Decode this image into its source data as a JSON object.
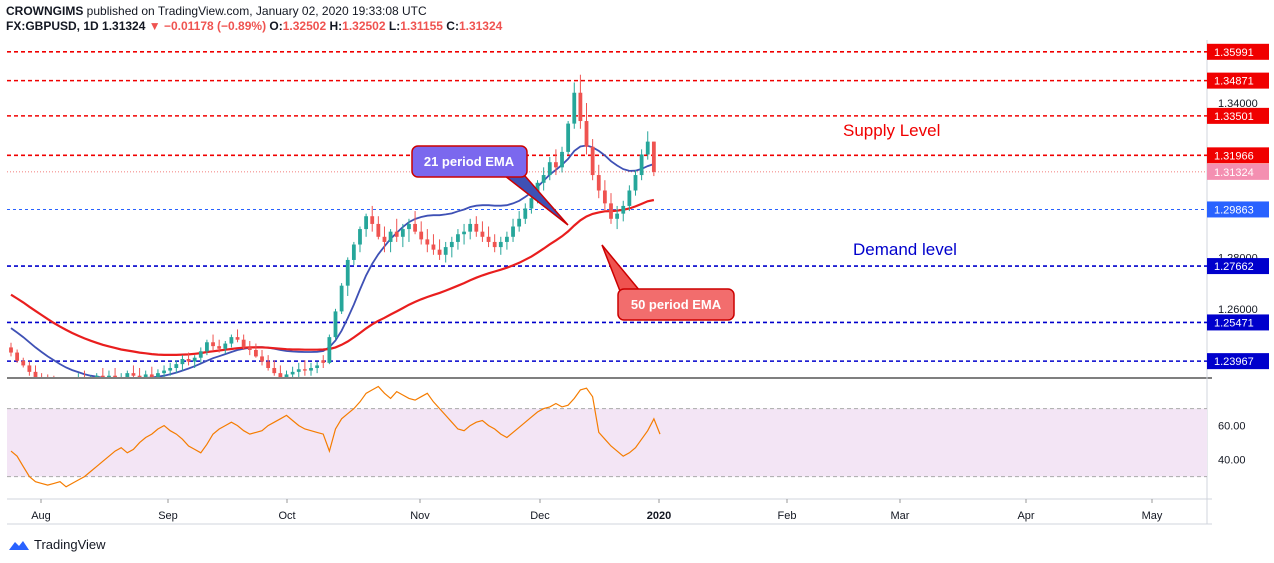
{
  "header": {
    "publisher": "CROWNGIMS",
    "published_text": "published on TradingView.com, January 02, 2020 19:33:08 UTC",
    "symbol": "FX:GBPUSD, 1D",
    "last": "1.31324",
    "change": "▼ −0.01178 (−0.89%)",
    "o_label": "O:",
    "o": "1.32502",
    "h_label": "H:",
    "h": "1.32502",
    "l_label": "L:",
    "l": "1.31155",
    "c_label": "C:",
    "c": "1.31324"
  },
  "branding": {
    "name": "TradingView",
    "icon": "tradingview-logo-icon"
  },
  "colors": {
    "up": "#26a69a",
    "down": "#ef5350",
    "ema21": "#3f51b5",
    "ema50": "#e91e1e",
    "supply": "#f00000",
    "demand": "#0000cc",
    "rsi": "#f57c00",
    "rsi_band": "#f3e5f5"
  },
  "chart_data": [
    {
      "type": "candlestick",
      "symbol": "FX:GBPUSD",
      "timeframe": "1D",
      "price_axis_ticks": [
        "1.34000",
        "1.28000",
        "1.26000"
      ],
      "time_axis_ticks": [
        "Aug",
        "Sep",
        "Oct",
        "Nov",
        "Dec",
        "2020",
        "Feb",
        "Mar",
        "Apr",
        "May"
      ],
      "ylim": [
        1.2335,
        1.3645
      ],
      "levels": [
        {
          "value": 1.35991,
          "label": "1.35991",
          "kind": "supply"
        },
        {
          "value": 1.34871,
          "label": "1.34871",
          "kind": "supply"
        },
        {
          "value": 1.33501,
          "label": "1.33501",
          "kind": "supply"
        },
        {
          "value": 1.31966,
          "label": "1.31966",
          "kind": "supply"
        },
        {
          "value": 1.29863,
          "label": "1.29863",
          "kind": "current-blue"
        },
        {
          "value": 1.27662,
          "label": "1.27662",
          "kind": "demand"
        },
        {
          "value": 1.25471,
          "label": "1.25471",
          "kind": "demand"
        },
        {
          "value": 1.23967,
          "label": "1.23967",
          "kind": "demand"
        }
      ],
      "last_price": {
        "value": 1.31324,
        "label": "1.31324"
      },
      "annotations": [
        {
          "text": "Supply Level",
          "kind": "text-red"
        },
        {
          "text": "Demand level",
          "kind": "text-blue"
        },
        {
          "text": "21 period EMA",
          "kind": "callout-blue"
        },
        {
          "text": "50 period EMA",
          "kind": "callout-red"
        }
      ],
      "candles": [
        [
          1.245,
          1.2468,
          1.2415,
          1.243
        ],
        [
          1.243,
          1.2442,
          1.239,
          1.2398
        ],
        [
          1.2398,
          1.241,
          1.2372,
          1.238
        ],
        [
          1.238,
          1.2395,
          1.234,
          1.2355
        ],
        [
          1.2355,
          1.238,
          1.232,
          1.233
        ],
        [
          1.233,
          1.235,
          1.23,
          1.232
        ],
        [
          1.232,
          1.2345,
          1.23,
          1.231
        ],
        [
          1.231,
          1.234,
          1.229,
          1.23
        ],
        [
          1.23,
          1.233,
          1.228,
          1.229
        ],
        [
          1.229,
          1.232,
          1.227,
          1.23
        ],
        [
          1.23,
          1.233,
          1.228,
          1.232
        ],
        [
          1.232,
          1.235,
          1.23,
          1.233
        ],
        [
          1.233,
          1.236,
          1.23,
          1.231
        ],
        [
          1.231,
          1.234,
          1.229,
          1.232
        ],
        [
          1.232,
          1.235,
          1.23,
          1.234
        ],
        [
          1.234,
          1.237,
          1.232,
          1.233
        ],
        [
          1.233,
          1.236,
          1.231,
          1.234
        ],
        [
          1.234,
          1.237,
          1.232,
          1.232
        ],
        [
          1.232,
          1.235,
          1.23,
          1.233
        ],
        [
          1.233,
          1.236,
          1.231,
          1.235
        ],
        [
          1.235,
          1.238,
          1.233,
          1.234
        ],
        [
          1.234,
          1.237,
          1.232,
          1.233
        ],
        [
          1.233,
          1.236,
          1.231,
          1.2345
        ],
        [
          1.2345,
          1.2375,
          1.2325,
          1.2335
        ],
        [
          1.2335,
          1.2365,
          1.2315,
          1.235
        ],
        [
          1.235,
          1.238,
          1.233,
          1.236
        ],
        [
          1.236,
          1.239,
          1.234,
          1.237
        ],
        [
          1.237,
          1.24,
          1.235,
          1.2385
        ],
        [
          1.2385,
          1.242,
          1.236,
          1.2405
        ],
        [
          1.2405,
          1.243,
          1.238,
          1.2395
        ],
        [
          1.2395,
          1.242,
          1.237,
          1.241
        ],
        [
          1.241,
          1.245,
          1.239,
          1.2435
        ],
        [
          1.2435,
          1.248,
          1.242,
          1.247
        ],
        [
          1.247,
          1.25,
          1.244,
          1.2455
        ],
        [
          1.2455,
          1.248,
          1.243,
          1.2445
        ],
        [
          1.2445,
          1.2475,
          1.2425,
          1.2465
        ],
        [
          1.2465,
          1.25,
          1.245,
          1.249
        ],
        [
          1.249,
          1.252,
          1.247,
          1.248
        ],
        [
          1.248,
          1.25,
          1.244,
          1.245
        ],
        [
          1.245,
          1.2475,
          1.242,
          1.244
        ],
        [
          1.244,
          1.2465,
          1.241,
          1.2415
        ],
        [
          1.2415,
          1.244,
          1.238,
          1.2395
        ],
        [
          1.2395,
          1.242,
          1.236,
          1.237
        ],
        [
          1.237,
          1.24,
          1.234,
          1.235
        ],
        [
          1.235,
          1.238,
          1.232,
          1.233
        ],
        [
          1.233,
          1.236,
          1.23,
          1.2345
        ],
        [
          1.2345,
          1.2375,
          1.232,
          1.2355
        ],
        [
          1.2355,
          1.239,
          1.233,
          1.2365
        ],
        [
          1.2365,
          1.24,
          1.234,
          1.236
        ],
        [
          1.236,
          1.239,
          1.234,
          1.237
        ],
        [
          1.237,
          1.2395,
          1.235,
          1.238
        ],
        [
          1.24,
          1.242,
          1.237,
          1.239
        ],
        [
          1.239,
          1.25,
          1.2385,
          1.249
        ],
        [
          1.249,
          1.26,
          1.248,
          1.259
        ],
        [
          1.259,
          1.27,
          1.258,
          1.269
        ],
        [
          1.269,
          1.28,
          1.265,
          1.279
        ],
        [
          1.279,
          1.286,
          1.277,
          1.285
        ],
        [
          1.285,
          1.292,
          1.282,
          1.291
        ],
        [
          1.291,
          1.297,
          1.288,
          1.296
        ],
        [
          1.296,
          1.3,
          1.29,
          1.293
        ],
        [
          1.293,
          1.296,
          1.287,
          1.288
        ],
        [
          1.288,
          1.292,
          1.282,
          1.286
        ],
        [
          1.286,
          1.291,
          1.282,
          1.29
        ],
        [
          1.29,
          1.295,
          1.286,
          1.288
        ],
        [
          1.288,
          1.293,
          1.284,
          1.291
        ],
        [
          1.291,
          1.295,
          1.286,
          1.293
        ],
        [
          1.293,
          1.298,
          1.289,
          1.29
        ],
        [
          1.29,
          1.294,
          1.285,
          1.287
        ],
        [
          1.287,
          1.291,
          1.282,
          1.285
        ],
        [
          1.285,
          1.289,
          1.281,
          1.283
        ],
        [
          1.283,
          1.287,
          1.279,
          1.281
        ],
        [
          1.281,
          1.286,
          1.278,
          1.284
        ],
        [
          1.284,
          1.288,
          1.28,
          1.286
        ],
        [
          1.286,
          1.291,
          1.283,
          1.289
        ],
        [
          1.289,
          1.293,
          1.285,
          1.29
        ],
        [
          1.29,
          1.295,
          1.287,
          1.293
        ],
        [
          1.293,
          1.296,
          1.288,
          1.29
        ],
        [
          1.29,
          1.294,
          1.286,
          1.288
        ],
        [
          1.288,
          1.292,
          1.284,
          1.286
        ],
        [
          1.286,
          1.289,
          1.282,
          1.284
        ],
        [
          1.284,
          1.288,
          1.281,
          1.286
        ],
        [
          1.286,
          1.29,
          1.283,
          1.288
        ],
        [
          1.288,
          1.295,
          1.286,
          1.292
        ],
        [
          1.292,
          1.298,
          1.29,
          1.295
        ],
        [
          1.295,
          1.301,
          1.293,
          1.299
        ],
        [
          1.299,
          1.305,
          1.297,
          1.303
        ],
        [
          1.303,
          1.31,
          1.301,
          1.309
        ],
        [
          1.309,
          1.315,
          1.306,
          1.312
        ],
        [
          1.312,
          1.319,
          1.31,
          1.317
        ],
        [
          1.317,
          1.322,
          1.312,
          1.315
        ],
        [
          1.315,
          1.323,
          1.313,
          1.321
        ],
        [
          1.321,
          1.333,
          1.32,
          1.332
        ],
        [
          1.332,
          1.348,
          1.33,
          1.344
        ],
        [
          1.344,
          1.351,
          1.33,
          1.333
        ],
        [
          1.333,
          1.34,
          1.32,
          1.323
        ],
        [
          1.323,
          1.326,
          1.31,
          1.312
        ],
        [
          1.312,
          1.316,
          1.303,
          1.306
        ],
        [
          1.306,
          1.31,
          1.298,
          1.301
        ],
        [
          1.301,
          1.305,
          1.293,
          1.295
        ],
        [
          1.295,
          1.3,
          1.291,
          1.297
        ],
        [
          1.297,
          1.302,
          1.294,
          1.3
        ],
        [
          1.3,
          1.308,
          1.298,
          1.306
        ],
        [
          1.306,
          1.314,
          1.304,
          1.312
        ],
        [
          1.312,
          1.322,
          1.31,
          1.32
        ],
        [
          1.32,
          1.329,
          1.318,
          1.325
        ],
        [
          1.325,
          1.325,
          1.3116,
          1.3132
        ]
      ],
      "series": [
        {
          "name": "21 period EMA",
          "color": "#3f51b5",
          "values": [
            1.2525,
            1.2508,
            1.249,
            1.247,
            1.245,
            1.2432,
            1.2415,
            1.24,
            1.2385,
            1.2372,
            1.2362,
            1.2354,
            1.2346,
            1.234,
            1.2336,
            1.2332,
            1.233,
            1.2328,
            1.2327,
            1.2327,
            1.2328,
            1.2329,
            1.2331,
            1.2333,
            1.2336,
            1.234,
            1.2346,
            1.2352,
            1.236,
            1.2368,
            1.2377,
            1.2387,
            1.2398,
            1.2408,
            1.2416,
            1.2424,
            1.2432,
            1.244,
            1.2445,
            1.2449,
            1.2451,
            1.2451,
            1.2449,
            1.2445,
            1.244,
            1.2436,
            1.2434,
            1.2433,
            1.2432,
            1.2432,
            1.2433,
            1.2436,
            1.2451,
            1.2477,
            1.2515,
            1.2563,
            1.2617,
            1.2675,
            1.273,
            1.2775,
            1.2812,
            1.2843,
            1.2872,
            1.2895,
            1.2918,
            1.2937,
            1.2949,
            1.2957,
            1.2962,
            1.2964,
            1.2964,
            1.2967,
            1.2971,
            1.2979,
            1.2986,
            1.2996,
            1.3001,
            1.3003,
            1.3003,
            1.3001,
            1.3001,
            1.3003,
            1.301,
            1.302,
            1.3035,
            1.3052,
            1.3074,
            1.3098,
            1.3122,
            1.314,
            1.316,
            1.3183,
            1.3214,
            1.3231,
            1.3235,
            1.3228,
            1.3214,
            1.3196,
            1.3174,
            1.3157,
            1.3143,
            1.3136,
            1.3137,
            1.3144,
            1.3155,
            1.3163
          ]
        },
        {
          "name": "50 period EMA",
          "color": "#e91e1e",
          "values": [
            1.2655,
            1.264,
            1.2625,
            1.2608,
            1.2592,
            1.2576,
            1.256,
            1.2545,
            1.2531,
            1.2518,
            1.2506,
            1.2495,
            1.2485,
            1.2476,
            1.2468,
            1.246,
            1.2454,
            1.2448,
            1.2442,
            1.2438,
            1.2434,
            1.243,
            1.2427,
            1.2424,
            1.2422,
            1.2421,
            1.2421,
            1.2421,
            1.2422,
            1.2423,
            1.2425,
            1.2428,
            1.2432,
            1.2435,
            1.2438,
            1.2441,
            1.2444,
            1.2447,
            1.2449,
            1.245,
            1.245,
            1.245,
            1.2449,
            1.2447,
            1.2445,
            1.2443,
            1.2442,
            1.2442,
            1.2441,
            1.2441,
            1.2441,
            1.2442,
            1.2444,
            1.245,
            1.246,
            1.2473,
            1.2489,
            1.2506,
            1.2524,
            1.254,
            1.2553,
            1.2565,
            1.2578,
            1.259,
            1.2603,
            1.2616,
            1.2627,
            1.2637,
            1.2646,
            1.2654,
            1.2662,
            1.2671,
            1.268,
            1.269,
            1.27,
            1.2711,
            1.2721,
            1.273,
            1.2738,
            1.2745,
            1.2752,
            1.276,
            1.2769,
            1.2779,
            1.2791,
            1.2803,
            1.2818,
            1.2834,
            1.2851,
            1.2866,
            1.2882,
            1.2901,
            1.2924,
            1.2944,
            1.2959,
            1.2969,
            1.2975,
            1.2979,
            1.298,
            1.2982,
            1.2985,
            1.299,
            1.2998,
            1.3008,
            1.3018,
            1.3023
          ]
        }
      ]
    },
    {
      "type": "line",
      "name": "RSI",
      "axis_ticks": [
        "60.00",
        "40.00"
      ],
      "ylim": [
        18,
        88
      ],
      "band": [
        30,
        70
      ],
      "values": [
        45,
        42,
        36,
        30,
        27,
        26,
        25,
        26,
        27,
        24,
        26,
        28,
        30,
        33,
        36,
        39,
        42,
        45,
        47,
        44,
        46,
        50,
        53,
        55,
        58,
        60,
        57,
        55,
        52,
        48,
        46,
        44,
        49,
        55,
        58,
        60,
        62,
        60,
        57,
        55,
        56,
        57,
        60,
        62,
        64,
        66,
        63,
        60,
        58,
        57,
        56,
        55,
        45,
        58,
        64,
        67,
        70,
        74,
        79,
        81,
        83,
        79,
        76,
        80,
        78,
        76,
        75,
        77,
        79,
        74,
        70,
        66,
        62,
        58,
        57,
        60,
        62,
        63,
        60,
        58,
        55,
        53,
        56,
        59,
        62,
        65,
        68,
        70,
        71,
        73,
        71,
        72,
        76,
        81,
        82,
        77,
        56,
        52,
        48,
        45,
        42,
        44,
        47,
        52,
        57,
        64,
        55
      ]
    }
  ]
}
